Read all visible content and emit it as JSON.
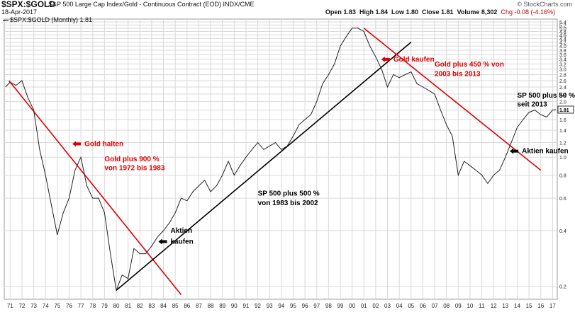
{
  "header": {
    "ticker": "$SPX:$GOLD",
    "description": "S&P 500 Large Cap Index/Gold - Continuous Contract (EOD)",
    "exchange": "INDX/CME",
    "brand": "© StockCharts.com",
    "date": "18-Apr-2017",
    "open": "Open 1.83",
    "high": "High 1.84",
    "low": "Low 1.80",
    "close": "Close 1.81",
    "volume": "Volume 8,302",
    "change": "Chg -0.08 (-4.16%)"
  },
  "legend": "$SPX:$GOLD (Monthly) 1.81",
  "colors": {
    "annotation": "#e00000",
    "trend_black": "#000000",
    "series": "#222222",
    "grid": "#d9d9d9"
  },
  "chart_data": {
    "type": "line",
    "scale": "log",
    "xlabel": "",
    "ylabel": "",
    "x_range": [
      1970.5,
      2017.4
    ],
    "ylim": [
      0.17,
      5.6
    ],
    "grid": true,
    "x_ticks": [
      "71",
      "72",
      "73",
      "74",
      "75",
      "76",
      "77",
      "78",
      "79",
      "80",
      "81",
      "82",
      "83",
      "84",
      "85",
      "86",
      "87",
      "88",
      "89",
      "90",
      "91",
      "92",
      "93",
      "94",
      "95",
      "96",
      "97",
      "98",
      "99",
      "00",
      "01",
      "02",
      "03",
      "04",
      "05",
      "06",
      "07",
      "08",
      "09",
      "10",
      "11",
      "12",
      "13",
      "14",
      "15",
      "16",
      "17"
    ],
    "y_ticks": [
      "5.4",
      "5.2",
      "5.0",
      "4.8",
      "4.6",
      "4.4",
      "4.2",
      "4.0",
      "3.8",
      "3.6",
      "3.4",
      "3.2",
      "3.0",
      "2.8",
      "2.6",
      "2.4",
      "2.2",
      "2.0",
      "1.8",
      "1.6",
      "1.4",
      "1.2",
      "1.0",
      "0.8",
      "0.6",
      "0.4",
      "0.2"
    ],
    "last_value": "1.81",
    "series": [
      {
        "name": "$SPX:$GOLD (Monthly) 1.81",
        "points": [
          [
            1970.6,
            2.4
          ],
          [
            1971.0,
            2.55
          ],
          [
            1971.5,
            2.45
          ],
          [
            1972.0,
            2.6
          ],
          [
            1972.5,
            2.1
          ],
          [
            1973.0,
            1.8
          ],
          [
            1973.5,
            1.1
          ],
          [
            1974.0,
            0.8
          ],
          [
            1974.5,
            0.55
          ],
          [
            1975.0,
            0.38
          ],
          [
            1975.5,
            0.5
          ],
          [
            1976.0,
            0.6
          ],
          [
            1976.5,
            0.85
          ],
          [
            1977.0,
            1.0
          ],
          [
            1977.5,
            0.7
          ],
          [
            1978.0,
            0.6
          ],
          [
            1978.5,
            0.6
          ],
          [
            1979.0,
            0.5
          ],
          [
            1979.5,
            0.3
          ],
          [
            1980.0,
            0.19
          ],
          [
            1980.5,
            0.23
          ],
          [
            1981.0,
            0.22
          ],
          [
            1981.5,
            0.32
          ],
          [
            1982.0,
            0.3
          ],
          [
            1982.5,
            0.3
          ],
          [
            1983.0,
            0.33
          ],
          [
            1983.5,
            0.37
          ],
          [
            1984.0,
            0.4
          ],
          [
            1984.5,
            0.44
          ],
          [
            1985.0,
            0.5
          ],
          [
            1985.5,
            0.6
          ],
          [
            1986.0,
            0.58
          ],
          [
            1986.5,
            0.65
          ],
          [
            1987.0,
            0.7
          ],
          [
            1987.5,
            0.75
          ],
          [
            1988.0,
            0.65
          ],
          [
            1988.5,
            0.7
          ],
          [
            1989.0,
            0.8
          ],
          [
            1989.5,
            0.95
          ],
          [
            1990.0,
            0.8
          ],
          [
            1990.5,
            0.9
          ],
          [
            1991.0,
            1.0
          ],
          [
            1991.5,
            1.1
          ],
          [
            1992.0,
            1.2
          ],
          [
            1992.5,
            1.1
          ],
          [
            1993.0,
            1.15
          ],
          [
            1993.5,
            1.2
          ],
          [
            1994.0,
            1.1
          ],
          [
            1994.5,
            1.15
          ],
          [
            1995.0,
            1.3
          ],
          [
            1995.5,
            1.5
          ],
          [
            1996.0,
            1.6
          ],
          [
            1996.5,
            1.7
          ],
          [
            1997.0,
            2.0
          ],
          [
            1997.5,
            2.5
          ],
          [
            1998.0,
            2.8
          ],
          [
            1998.5,
            3.2
          ],
          [
            1999.0,
            4.0
          ],
          [
            1999.5,
            4.5
          ],
          [
            2000.0,
            5.0
          ],
          [
            2000.5,
            5.0
          ],
          [
            2001.0,
            4.8
          ],
          [
            2001.5,
            4.0
          ],
          [
            2002.0,
            3.5
          ],
          [
            2002.5,
            3.0
          ],
          [
            2003.0,
            2.4
          ],
          [
            2003.5,
            2.8
          ],
          [
            2004.0,
            2.7
          ],
          [
            2004.5,
            2.8
          ],
          [
            2005.0,
            2.9
          ],
          [
            2005.5,
            2.5
          ],
          [
            2006.0,
            2.4
          ],
          [
            2006.5,
            2.3
          ],
          [
            2007.0,
            2.2
          ],
          [
            2007.5,
            1.8
          ],
          [
            2008.0,
            1.5
          ],
          [
            2008.5,
            1.3
          ],
          [
            2009.0,
            0.8
          ],
          [
            2009.5,
            0.95
          ],
          [
            2010.0,
            0.9
          ],
          [
            2010.5,
            0.85
          ],
          [
            2011.0,
            0.8
          ],
          [
            2011.5,
            0.72
          ],
          [
            2012.0,
            0.8
          ],
          [
            2012.5,
            0.85
          ],
          [
            2013.0,
            1.0
          ],
          [
            2013.5,
            1.2
          ],
          [
            2014.0,
            1.45
          ],
          [
            2014.5,
            1.6
          ],
          [
            2015.0,
            1.75
          ],
          [
            2015.5,
            1.8
          ],
          [
            2016.0,
            1.7
          ],
          [
            2016.5,
            1.65
          ],
          [
            2017.0,
            1.8
          ],
          [
            2017.3,
            1.81
          ]
        ]
      }
    ],
    "trendlines": [
      {
        "color": "#e00000",
        "from": [
          1970.9,
          2.6
        ],
        "to": [
          1985.5,
          0.18
        ]
      },
      {
        "color": "#000000",
        "from": [
          1980.0,
          0.19
        ],
        "to": [
          2005.0,
          4.2
        ]
      },
      {
        "color": "#e00000",
        "from": [
          2001.0,
          5.0
        ],
        "to": [
          2016.0,
          0.85
        ]
      }
    ],
    "annotations": [
      {
        "text": "Gold halten",
        "x": 1977.3,
        "y": 1.15,
        "arrow": "left",
        "color": "#e00000"
      },
      {
        "text": "Gold plus 900 %",
        "x": 1979.0,
        "y": 0.95,
        "color": "#e00000"
      },
      {
        "text": "von 1972 bis 1983",
        "x": 1979.0,
        "y": 0.85,
        "color": "#e00000"
      },
      {
        "text": "Aktien",
        "x": 1984.6,
        "y": 0.39,
        "color": "#000000"
      },
      {
        "text": "kaufen",
        "x": 1984.6,
        "y": 0.34,
        "arrow": "left",
        "color": "#000000"
      },
      {
        "text": "SP 500 plus 500 %",
        "x": 1992.0,
        "y": 0.62,
        "color": "#000000"
      },
      {
        "text": "von 1983 bis 2002",
        "x": 1992.0,
        "y": 0.55,
        "color": "#000000"
      },
      {
        "text": "Gold kaufen",
        "x": 2003.5,
        "y": 3.3,
        "arrow": "left",
        "color": "#e00000"
      },
      {
        "text": "Gold plus 450 % von",
        "x": 2007.0,
        "y": 3.1,
        "color": "#e00000"
      },
      {
        "text": "2003 bis 2013",
        "x": 2007.0,
        "y": 2.75,
        "color": "#e00000"
      },
      {
        "text": "SP 500 plus 50 %",
        "x": 2014.0,
        "y": 2.1,
        "color": "#000000"
      },
      {
        "text": "seit 2013",
        "x": 2014.0,
        "y": 1.88,
        "color": "#000000"
      },
      {
        "text": "Aktien kaufen",
        "x": 2014.4,
        "y": 1.05,
        "arrow": "left",
        "color": "#000000"
      }
    ]
  }
}
